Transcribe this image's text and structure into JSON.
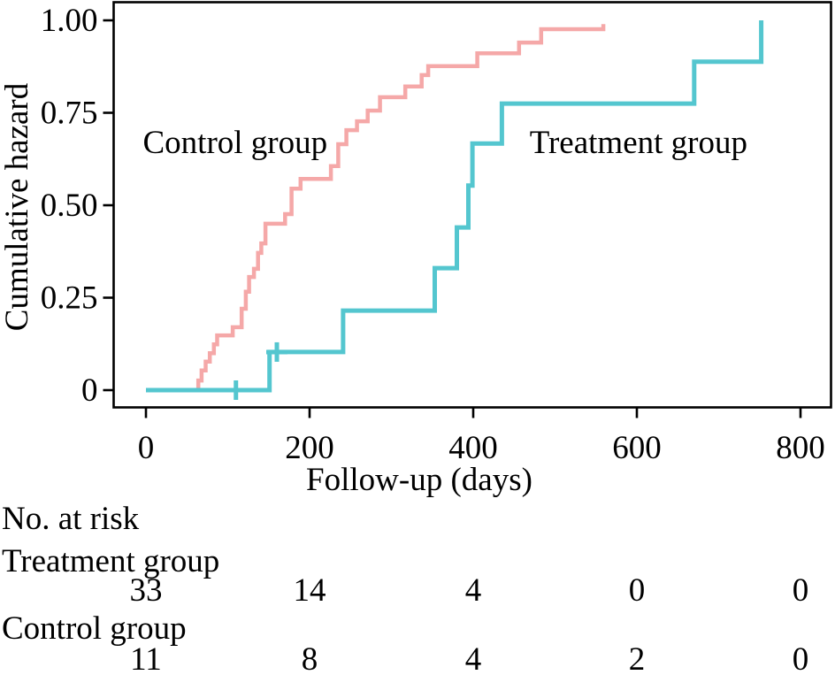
{
  "chart_data": {
    "type": "line",
    "subtype": "step-function-cumulative-hazard",
    "title": "",
    "xlabel": "Follow-up (days)",
    "ylabel": "Cumulative hazard",
    "xlim_days": [
      -40,
      838
    ],
    "ylim": [
      -0.05,
      1.05
    ],
    "grid": false,
    "legend_position": "inline-curve-labels",
    "xticks": {
      "values": [
        0,
        200,
        400,
        600,
        800
      ],
      "labels": [
        "0",
        "200",
        "400",
        "600",
        "800"
      ]
    },
    "yticks": {
      "values": [
        0,
        0.25,
        0.5,
        0.75,
        1.0
      ],
      "labels": [
        "0",
        "0.25",
        "0.50",
        "0.75",
        "1.00"
      ]
    },
    "series": [
      {
        "name": "Control group",
        "color": "#F5A8A8",
        "stroke_width": 4.5,
        "start": [
          0,
          0
        ],
        "steps": [
          [
            64,
            0.026
          ],
          [
            68,
            0.053
          ],
          [
            73,
            0.077
          ],
          [
            78,
            0.1
          ],
          [
            83,
            0.124
          ],
          [
            87,
            0.148
          ],
          [
            106,
            0.17
          ],
          [
            117,
            0.22
          ],
          [
            122,
            0.266
          ],
          [
            126,
            0.306
          ],
          [
            132,
            0.328
          ],
          [
            137,
            0.371
          ],
          [
            141,
            0.397
          ],
          [
            146,
            0.45
          ],
          [
            170,
            0.476
          ],
          [
            178,
            0.545
          ],
          [
            189,
            0.571
          ],
          [
            226,
            0.606
          ],
          [
            235,
            0.665
          ],
          [
            245,
            0.703
          ],
          [
            258,
            0.727
          ],
          [
            271,
            0.756
          ],
          [
            286,
            0.792
          ],
          [
            317,
            0.821
          ],
          [
            337,
            0.852
          ],
          [
            345,
            0.876
          ],
          [
            405,
            0.911
          ],
          [
            456,
            0.94
          ],
          [
            483,
            0.976
          ],
          [
            559,
            0.99
          ]
        ],
        "censor_marks": [],
        "label": {
          "text": "Control group",
          "x": 109,
          "y": 0.67
        }
      },
      {
        "name": "Treatment group",
        "color": "#54C6CF",
        "stroke_width": 5,
        "start": [
          0,
          0
        ],
        "steps": [
          [
            151,
            0.103
          ],
          [
            241,
            0.215
          ],
          [
            353,
            0.33
          ],
          [
            380,
            0.44
          ],
          [
            394,
            0.553
          ],
          [
            399,
            0.667
          ],
          [
            435,
            0.775
          ],
          [
            670,
            0.888
          ],
          [
            752,
            1.0
          ]
        ],
        "censor_marks": [
          [
            110,
            0
          ],
          [
            160,
            0.103
          ]
        ],
        "label": {
          "text": "Treatment group",
          "x": 602,
          "y": 0.67
        }
      }
    ],
    "risk_table": {
      "header": "No. at risk",
      "time_points": [
        0,
        200,
        400,
        600,
        800
      ],
      "rows": [
        {
          "label": "Treatment group",
          "counts": [
            "33",
            "14",
            "4",
            "0",
            "0"
          ]
        },
        {
          "label": "Control group",
          "counts": [
            "11",
            "8",
            "4",
            "2",
            "0"
          ]
        }
      ]
    }
  }
}
